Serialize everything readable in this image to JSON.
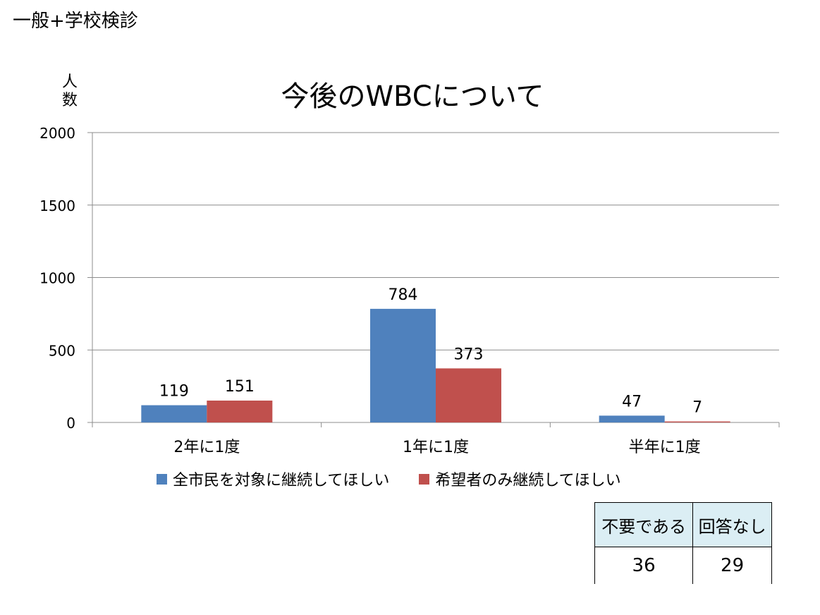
{
  "page": {
    "corner_label": "一般+学校検診"
  },
  "chart_data": {
    "type": "bar",
    "title": "今後のWBCについて",
    "ylabel": "人数",
    "xlabel": "",
    "categories": [
      "2年に1度",
      "1年に1度",
      "半年に1度"
    ],
    "series": [
      {
        "name": "全市民を対象に継続してほしい",
        "color": "#4f81bd",
        "values": [
          119,
          784,
          47
        ]
      },
      {
        "name": "希望者のみ継続してほしい",
        "color": "#c0504d",
        "values": [
          151,
          373,
          7
        ]
      }
    ],
    "ylim": [
      0,
      2000
    ],
    "yticks": [
      0,
      500,
      1000,
      1500,
      2000
    ],
    "grid": true,
    "data_labels": true,
    "legend_position": "bottom"
  },
  "summary_table": {
    "headers": [
      "不要である",
      "回答なし"
    ],
    "values": [
      "36",
      "29"
    ]
  }
}
